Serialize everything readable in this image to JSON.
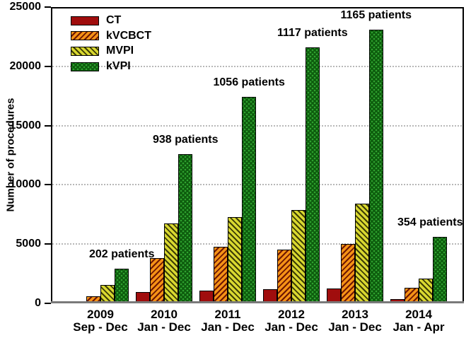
{
  "chart_data": {
    "type": "bar",
    "title": "",
    "xlabel": "",
    "ylabel": "Number of procedures",
    "ylim": [
      0,
      25000
    ],
    "yticks": [
      0,
      5000,
      10000,
      15000,
      20000,
      25000
    ],
    "grid": "horizontal dotted gray lines at 5000, 10000, 15000, 20000",
    "legend_position": "top-left inside plot",
    "legend_entries": [
      "CT",
      "kVCBCT",
      "MVPI",
      "kVPI"
    ],
    "categories": [
      {
        "year": "2009",
        "months": "Sep - Dec",
        "patients": "202 patients"
      },
      {
        "year": "2010",
        "months": "Jan - Dec",
        "patients": "938 patients"
      },
      {
        "year": "2011",
        "months": "Jan - Dec",
        "patients": "1056 patients"
      },
      {
        "year": "2012",
        "months": "Jan - Dec",
        "patients": "1117 patients"
      },
      {
        "year": "2013",
        "months": "Jan - Dec",
        "patients": "1165 patients"
      },
      {
        "year": "2014",
        "months": "Jan - Apr",
        "patients": "354 patients"
      }
    ],
    "series": [
      {
        "name": "CT",
        "pattern": "solid",
        "color": "#a00d0d",
        "values": [
          200,
          950,
          1050,
          1200,
          1250,
          350
        ]
      },
      {
        "name": "kVCBCT",
        "pattern": "diagonal-hatch ///",
        "color": "#f59216",
        "hatch_color": "#6d1602",
        "values": [
          600,
          3800,
          4800,
          4550,
          5000,
          1300
        ]
      },
      {
        "name": "MVPI",
        "pattern": "diagonal-hatch \\\\\\",
        "color": "#d9d830",
        "hatch_color": "#3c3c06",
        "values": [
          1550,
          6750,
          7250,
          7900,
          8400,
          2100
        ]
      },
      {
        "name": "kVPI",
        "pattern": "dot-grid",
        "color": "#0d5c0d",
        "dot_color": "#2fa12f",
        "values": [
          2900,
          12600,
          17450,
          21600,
          23100,
          5600
        ]
      }
    ],
    "annotations_note": "patient counts printed above each kVPI bar"
  }
}
